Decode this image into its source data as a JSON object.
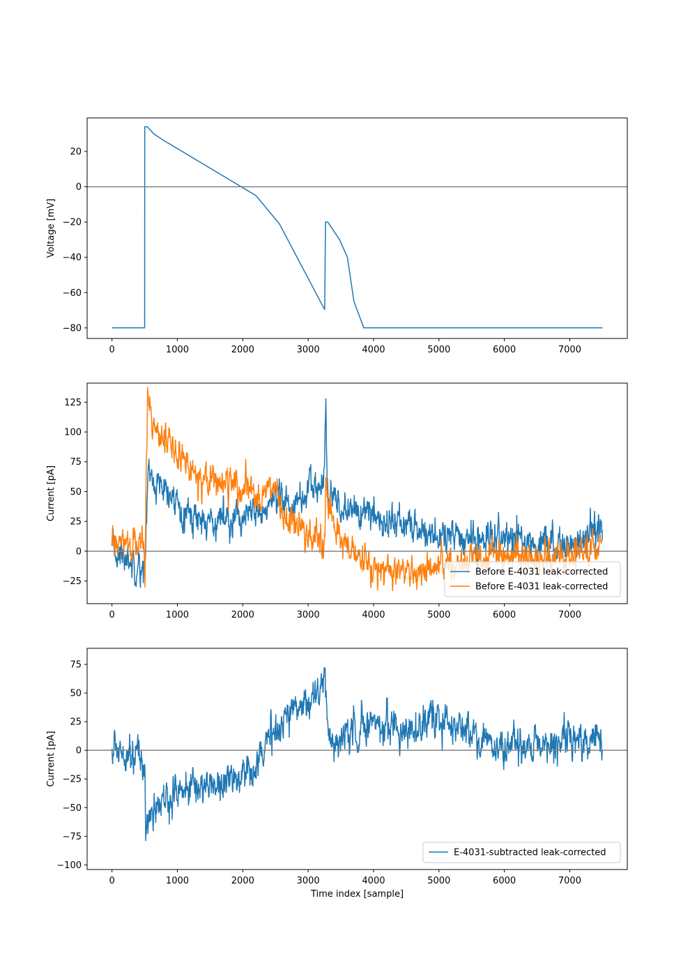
{
  "colors": {
    "blue": "#1f77b4",
    "orange": "#ff7f0e",
    "zero_line": "#808080",
    "frame": "#000000",
    "legend_border": "#cccccc"
  },
  "chart_data": [
    {
      "type": "line",
      "title": "",
      "xlabel": "",
      "ylabel": "Voltage [mV]",
      "xlim": [
        -380,
        7880
      ],
      "ylim": [
        -86,
        39
      ],
      "xticks": [
        0,
        1000,
        2000,
        3000,
        4000,
        5000,
        6000,
        7000
      ],
      "yticks": [
        -80,
        -60,
        -40,
        -20,
        0,
        20
      ],
      "zero_line": true,
      "legend": null,
      "series": [
        {
          "name": "",
          "color": "#1f77b4",
          "noise": 0,
          "x": [
            0,
            499,
            501,
            540,
            640,
            780,
            2200,
            2560,
            3250,
            3252,
            3265,
            3300,
            3480,
            3600,
            3700,
            3850,
            7500
          ],
          "y": [
            -80,
            -80,
            34,
            34,
            30,
            26.5,
            -5,
            -21,
            -69.5,
            -69.5,
            -20,
            -20,
            -30,
            -40,
            -65,
            -80,
            -80
          ]
        }
      ]
    },
    {
      "type": "line",
      "title": "",
      "xlabel": "",
      "ylabel": "Current [pA]",
      "xlim": [
        -380,
        7880
      ],
      "ylim": [
        -44,
        141
      ],
      "xticks": [
        0,
        1000,
        2000,
        3000,
        4000,
        5000,
        6000,
        7000
      ],
      "yticks": [
        -25,
        0,
        25,
        50,
        75,
        100,
        125
      ],
      "zero_line": true,
      "legend": "lower right",
      "series": [
        {
          "name": "Before E-4031 leak-corrected",
          "color": "#1f77b4",
          "noise": 7,
          "x": [
            0,
            200,
            400,
            495,
            505,
            525,
            545,
            600,
            700,
            850,
            1000,
            1200,
            1500,
            1800,
            2100,
            2300,
            2550,
            2800,
            3000,
            3200,
            3250,
            3270,
            3290,
            3310,
            3400,
            3600,
            3800,
            4000,
            4500,
            5000,
            5500,
            6000,
            6500,
            7000,
            7300,
            7500
          ],
          "y": [
            0,
            -5,
            -10,
            -15,
            -20,
            20,
            70,
            60,
            55,
            45,
            42,
            30,
            25,
            30,
            28,
            33,
            40,
            40,
            50,
            55,
            70,
            120,
            60,
            40,
            40,
            35,
            33,
            28,
            22,
            12,
            10,
            10,
            8,
            5,
            15,
            20
          ]
        },
        {
          "name": "Before E-4031 leak-corrected",
          "color": "#ff7f0e",
          "noise": 7,
          "x": [
            0,
            200,
            400,
            495,
            505,
            525,
            545,
            600,
            800,
            1000,
            1300,
            1700,
            2000,
            2300,
            2500,
            2600,
            2800,
            3000,
            3240,
            3260,
            3270,
            3290,
            3320,
            3400,
            3600,
            3800,
            4000,
            4500,
            5000,
            5500,
            6000,
            6500,
            7000,
            7300,
            7500
          ],
          "y": [
            5,
            5,
            5,
            5,
            -30,
            70,
            125,
            115,
            95,
            80,
            65,
            58,
            50,
            48,
            55,
            30,
            22,
            12,
            3,
            10,
            65,
            40,
            30,
            20,
            5,
            -10,
            -15,
            -20,
            -15,
            -5,
            -5,
            -5,
            -3,
            0,
            5
          ]
        }
      ]
    },
    {
      "type": "line",
      "title": "",
      "xlabel": "Time index [sample]",
      "ylabel": "Current [pA]",
      "xlim": [
        -380,
        7880
      ],
      "ylim": [
        -104,
        89
      ],
      "xticks": [
        0,
        1000,
        2000,
        3000,
        4000,
        5000,
        6000,
        7000
      ],
      "yticks": [
        -100,
        -75,
        -50,
        -25,
        0,
        25,
        50,
        75
      ],
      "zero_line": true,
      "legend": "lower right",
      "series": [
        {
          "name": "E-4031-subtracted leak-corrected",
          "color": "#1f77b4",
          "noise": 8,
          "x": [
            0,
            200,
            400,
            495,
            505,
            515,
            530,
            600,
            800,
            1000,
            1500,
            2000,
            2200,
            2400,
            2600,
            2800,
            3000,
            3200,
            3260,
            3300,
            3350,
            3500,
            3800,
            4000,
            4500,
            5000,
            5300,
            5500,
            5800,
            6000,
            6500,
            7000,
            7300,
            7500
          ],
          "y": [
            0,
            2,
            -5,
            -15,
            -20,
            -75,
            -60,
            -55,
            -45,
            -35,
            -30,
            -22,
            -10,
            8,
            25,
            38,
            45,
            52,
            60,
            25,
            5,
            10,
            20,
            25,
            18,
            25,
            20,
            15,
            5,
            0,
            5,
            5,
            5,
            10
          ]
        }
      ]
    }
  ]
}
